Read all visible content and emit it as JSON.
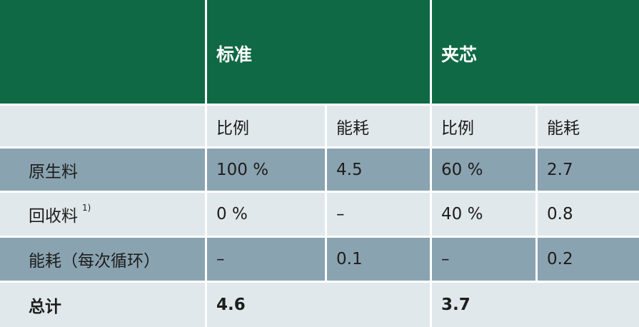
{
  "colors": {
    "header": "#0f6945",
    "light_row": "#e1e8eb",
    "dark_row": "#8aa3b1"
  },
  "header": {
    "groups": [
      "标准",
      "夹芯"
    ]
  },
  "subheader": [
    "比例",
    "能耗",
    "比例",
    "能耗"
  ],
  "rows": [
    {
      "label": "原生料",
      "footnote": "",
      "cells": [
        "100 %",
        "4.5",
        "60 %",
        "2.7"
      ]
    },
    {
      "label": "回收料",
      "footnote": "1)",
      "cells": [
        "0 %",
        "–",
        "40 %",
        "0.8"
      ]
    },
    {
      "label": "能耗（每次循环）",
      "footnote": "",
      "cells": [
        "–",
        "0.1",
        "–",
        "0.2"
      ]
    }
  ],
  "total": {
    "label": "总计",
    "values": [
      "4.6",
      "3.7"
    ]
  }
}
